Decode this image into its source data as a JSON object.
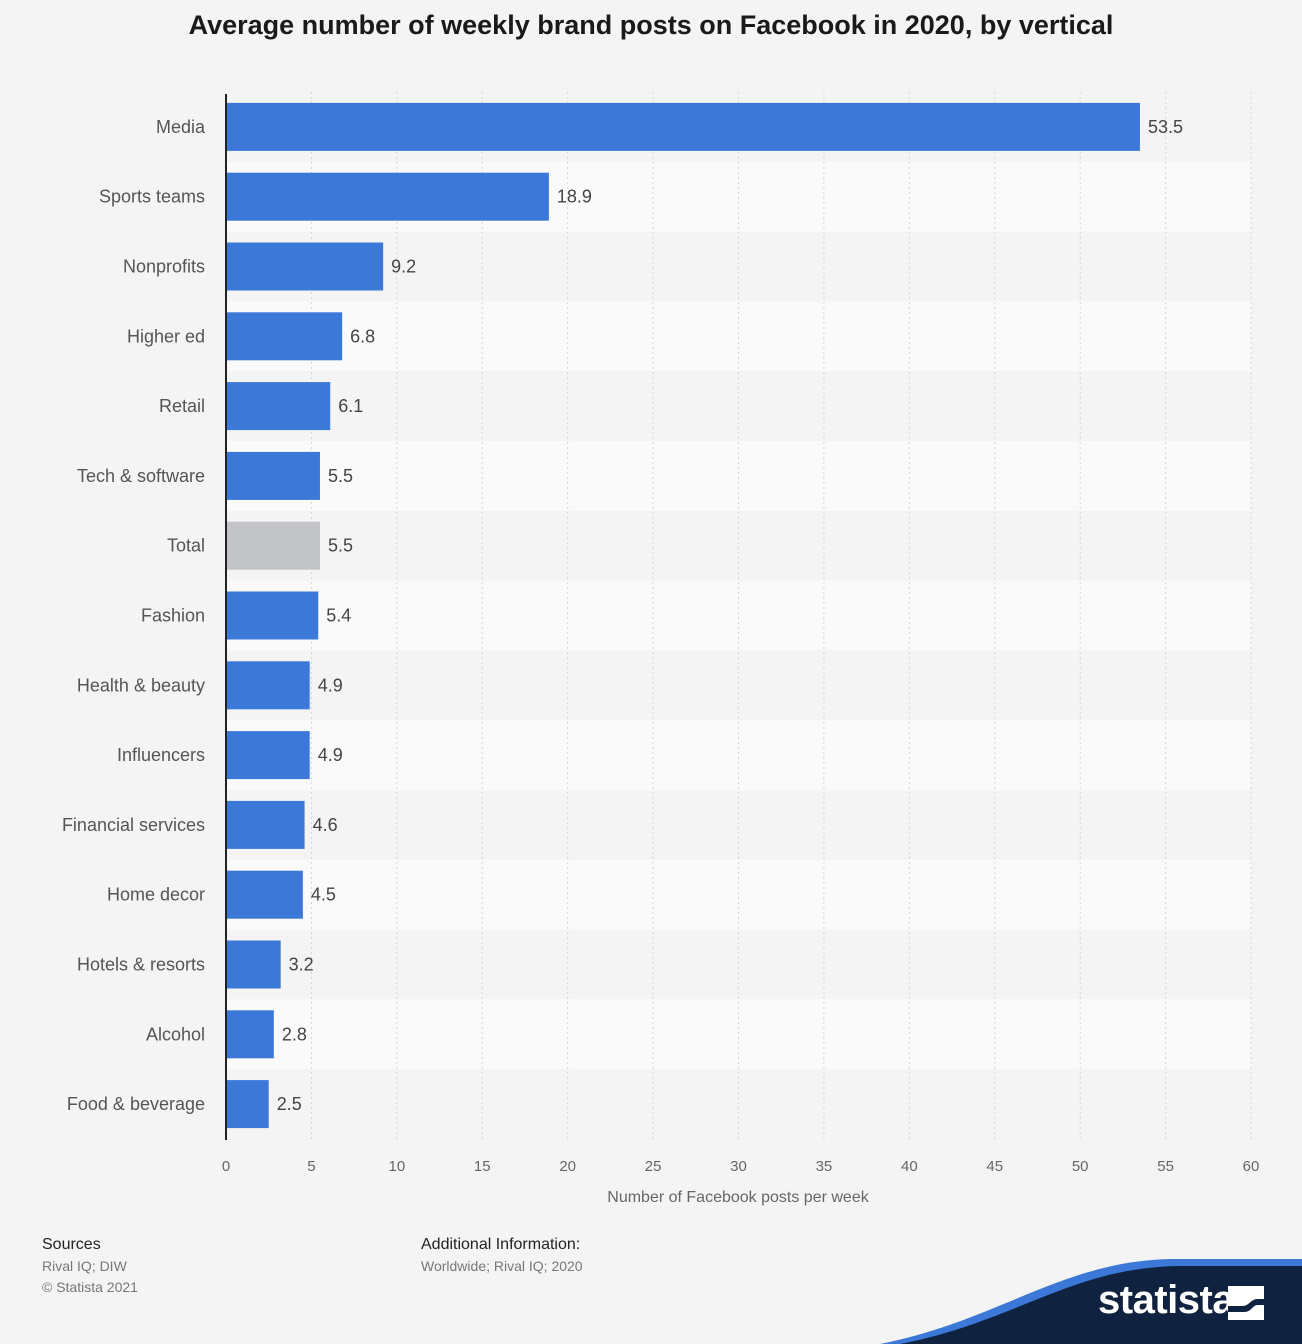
{
  "chart_data": {
    "type": "bar",
    "orientation": "horizontal",
    "title": "Average number of weekly brand posts on Facebook in 2020, by vertical",
    "xlabel": "Number of Facebook posts per week",
    "xlim": [
      0,
      60
    ],
    "ticks": [
      "0",
      "5",
      "10",
      "15",
      "20",
      "25",
      "30",
      "35",
      "40",
      "45",
      "50",
      "55",
      "60"
    ],
    "categories": [
      "Media",
      "Sports teams",
      "Nonprofits",
      "Higher ed",
      "Retail",
      "Tech & software",
      "Total",
      "Fashion",
      "Health & beauty",
      "Influencers",
      "Financial services",
      "Home decor",
      "Hotels & resorts",
      "Alcohol",
      "Food & beverage"
    ],
    "values": [
      53.5,
      18.9,
      9.2,
      6.8,
      6.1,
      5.5,
      5.5,
      5.4,
      4.9,
      4.9,
      4.6,
      4.5,
      3.2,
      2.8,
      2.5
    ],
    "value_labels": [
      "53.5",
      "18.9",
      "9.2",
      "6.8",
      "6.1",
      "5.5",
      "5.5",
      "5.4",
      "4.9",
      "4.9",
      "4.6",
      "4.5",
      "3.2",
      "2.8",
      "2.5"
    ],
    "highlight_category": "Total",
    "colors": {
      "bar": "#3b78d8",
      "highlight": "#c2c4c7",
      "band": "#fafafa",
      "grid": "#d4d4d4"
    },
    "grid": true,
    "legend": "none"
  },
  "footer": {
    "sources_heading": "Sources",
    "sources_lines": [
      "Rival IQ; DIW",
      "© Statista 2021"
    ],
    "info_heading": "Additional Information:",
    "info_line": "Worldwide; Rival IQ; 2020"
  },
  "brand": {
    "name": "statista",
    "icon": "statista-logo-icon",
    "colors": {
      "dark": "#0f2240",
      "accent": "#3b78d8"
    }
  }
}
